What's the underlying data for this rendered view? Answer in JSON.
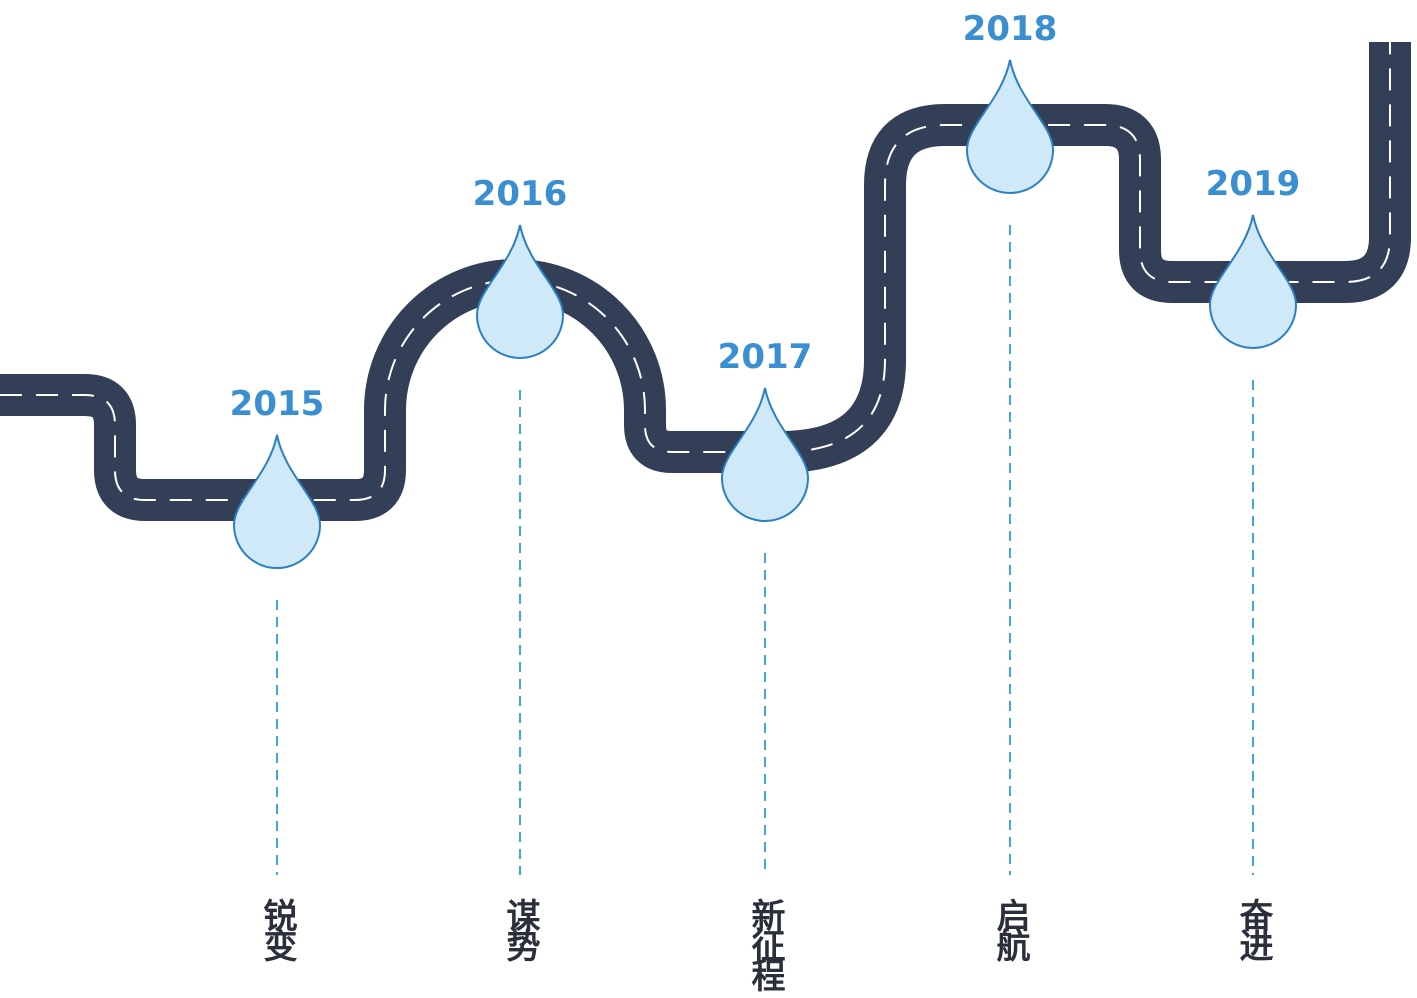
{
  "milestones": [
    {
      "year": "2015",
      "label": "锐变"
    },
    {
      "year": "2016",
      "label": "谋势"
    },
    {
      "year": "2017",
      "label": "新征程"
    },
    {
      "year": "2018",
      "label": "启航"
    },
    {
      "year": "2019",
      "label": "奋进"
    }
  ]
}
